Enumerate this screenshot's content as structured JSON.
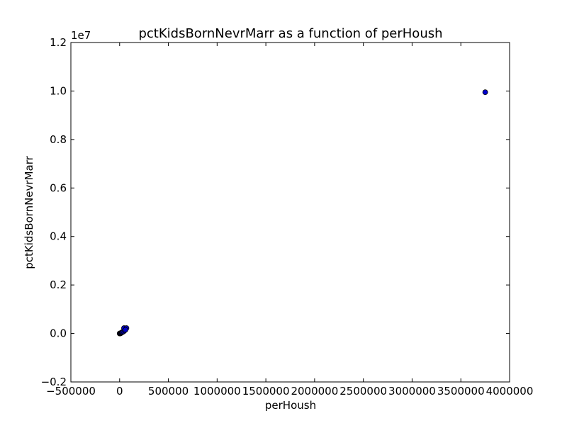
{
  "chart_data": {
    "type": "scatter",
    "title": "pctKidsBornNevrMarr as a function of perHoush",
    "xlabel": "perHoush",
    "ylabel": "pctKidsBornNevrMarr",
    "y_offset_text": "1e7",
    "xlim": [
      -500000,
      4000000
    ],
    "ylim": [
      -0.2,
      1.2
    ],
    "y_scale_note": "values in units of 1e7",
    "x_ticks": [
      -500000,
      0,
      500000,
      1000000,
      1500000,
      2000000,
      2500000,
      3000000,
      3500000,
      4000000
    ],
    "x_tick_labels": [
      "−500000",
      "0",
      "500000",
      "1000000",
      "1500000",
      "2000000",
      "2500000",
      "3000000",
      "3500000",
      "4000000"
    ],
    "y_ticks": [
      -0.2,
      0.0,
      0.2,
      0.4,
      0.6,
      0.8,
      1.0,
      1.2
    ],
    "y_tick_labels": [
      "−0.2",
      "0.0",
      "0.2",
      "0.4",
      "0.6",
      "0.8",
      "1.0",
      "1.2"
    ],
    "grid": false,
    "marker_color": "#0000cc",
    "points": [
      {
        "x": 0,
        "y": 0.0
      },
      {
        "x": 5000,
        "y": 0.0
      },
      {
        "x": 10000,
        "y": 0.001
      },
      {
        "x": 15000,
        "y": 0.002
      },
      {
        "x": 20000,
        "y": 0.003
      },
      {
        "x": 25000,
        "y": 0.005
      },
      {
        "x": 30000,
        "y": 0.006
      },
      {
        "x": 40000,
        "y": 0.008
      },
      {
        "x": 50000,
        "y": 0.012
      },
      {
        "x": 60000,
        "y": 0.02
      },
      {
        "x": 45000,
        "y": 0.022
      },
      {
        "x": 70000,
        "y": 0.022
      },
      {
        "x": 60000,
        "y": 0.015
      },
      {
        "x": 3750000,
        "y": 0.995
      }
    ]
  }
}
